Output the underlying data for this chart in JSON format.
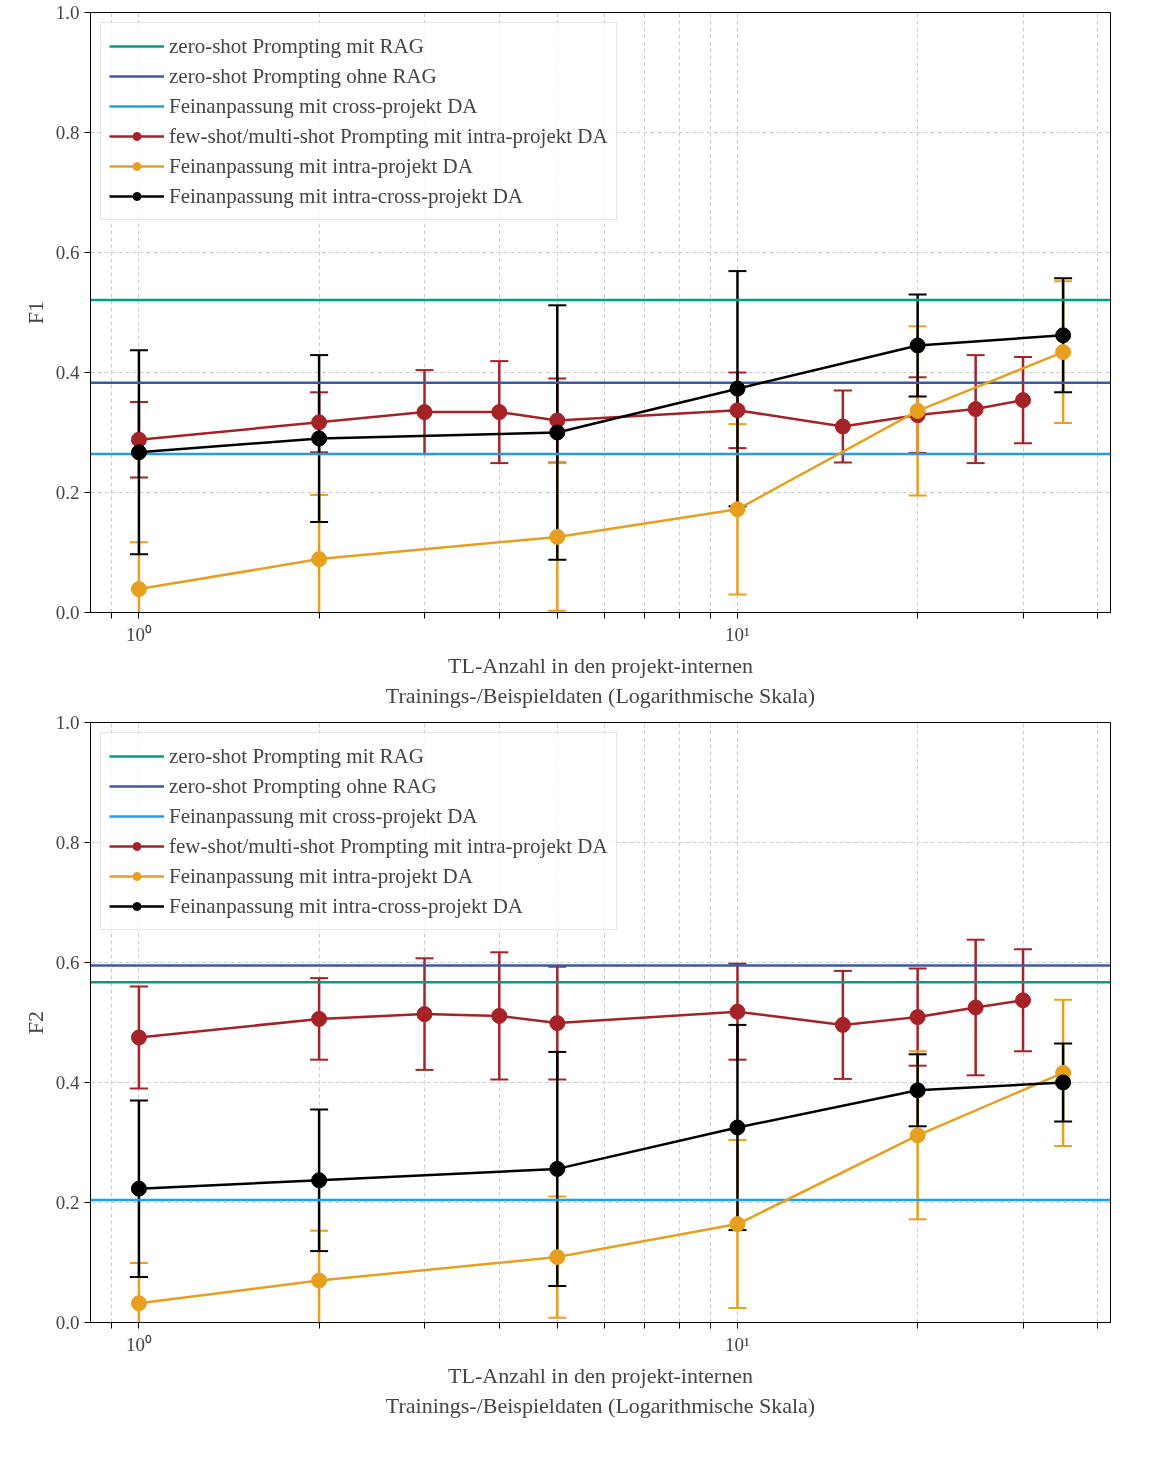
{
  "chart_data": [
    {
      "type": "line",
      "ylabel": "F1",
      "xlabel": "TL-Anzahl in den projekt-internen\nTrainings-/Beispieldaten (Logarithmische Skala)",
      "log": "x",
      "grid": true,
      "legend": "top left",
      "marker": "circle",
      "line_style": "solid",
      "xlim": [
        0.83,
        42
      ],
      "ylim": [
        0,
        1
      ],
      "xticks": [
        {
          "value": 0.9,
          "label": null
        },
        {
          "value": 1,
          "label": "10⁰"
        },
        {
          "value": 2,
          "label": null
        },
        {
          "value": 3,
          "label": null
        },
        {
          "value": 4,
          "label": null
        },
        {
          "value": 5,
          "label": null
        },
        {
          "value": 6,
          "label": null
        },
        {
          "value": 7,
          "label": null
        },
        {
          "value": 8,
          "label": null
        },
        {
          "value": 9,
          "label": null
        },
        {
          "value": 10,
          "label": "10¹"
        },
        {
          "value": 20,
          "label": null
        },
        {
          "value": 30,
          "label": null
        },
        {
          "value": 40,
          "label": null
        }
      ],
      "yticks": [
        {
          "value": 0,
          "label": "0.0"
        },
        {
          "value": 0.2,
          "label": "0.2"
        },
        {
          "value": 0.4,
          "label": "0.4"
        },
        {
          "value": 0.6,
          "label": "0.6"
        },
        {
          "value": 0.8,
          "label": "0.8"
        },
        {
          "value": 1,
          "label": "1.0"
        }
      ],
      "ref_lines": [
        {
          "axis": "y",
          "value": 0.521,
          "label": "zero-shot Prompting mit RAG",
          "color": "#009e86"
        },
        {
          "axis": "y",
          "value": 0.383,
          "label": "zero-shot Prompting ohne RAG",
          "color": "#3c5aa8"
        },
        {
          "axis": "y",
          "value": 0.264,
          "label": "Feinanpassung mit cross-projekt DA",
          "color": "#1fa0e6"
        }
      ],
      "series": [
        {
          "name": "few-shot/multi-shot Prompting mit intra-projekt DA",
          "color": "#a52226",
          "x": [
            1,
            2,
            3,
            4,
            5,
            10,
            15,
            20,
            25,
            30
          ],
          "values": [
            0.288,
            0.317,
            0.334,
            0.334,
            0.32,
            0.337,
            0.31,
            0.329,
            0.339,
            0.354
          ],
          "errors": [
            0.063,
            0.05,
            0.07,
            0.085,
            0.07,
            0.063,
            0.06,
            0.063,
            0.09,
            0.072
          ]
        },
        {
          "name": "Feinanpassung mit intra-projekt DA",
          "color": "#e69f1f",
          "x": [
            1,
            2,
            5,
            10,
            20,
            35
          ],
          "values": [
            0.039,
            0.089,
            0.126,
            0.172,
            0.336,
            0.434
          ],
          "errors": [
            0.078,
            0.107,
            0.123,
            0.142,
            0.141,
            0.118
          ]
        },
        {
          "name": "Feinanpassung mit intra-cross-projekt DA",
          "color": "#000000",
          "x": [
            1,
            2,
            5,
            10,
            20,
            35
          ],
          "values": [
            0.267,
            0.29,
            0.3,
            0.373,
            0.445,
            0.462
          ],
          "errors": [
            0.17,
            0.139,
            0.212,
            0.196,
            0.085,
            0.095
          ]
        }
      ]
    },
    {
      "type": "line",
      "ylabel": "F2",
      "xlabel": "TL-Anzahl in den projekt-internen\nTrainings-/Beispieldaten (Logarithmische Skala)",
      "log": "x",
      "grid": true,
      "legend": "top left",
      "marker": "circle",
      "line_style": "solid",
      "xlim": [
        0.83,
        42
      ],
      "ylim": [
        0,
        1
      ],
      "xticks": [
        {
          "value": 0.9,
          "label": null
        },
        {
          "value": 1,
          "label": "10⁰"
        },
        {
          "value": 2,
          "label": null
        },
        {
          "value": 3,
          "label": null
        },
        {
          "value": 4,
          "label": null
        },
        {
          "value": 5,
          "label": null
        },
        {
          "value": 6,
          "label": null
        },
        {
          "value": 7,
          "label": null
        },
        {
          "value": 8,
          "label": null
        },
        {
          "value": 9,
          "label": null
        },
        {
          "value": 10,
          "label": "10¹"
        },
        {
          "value": 20,
          "label": null
        },
        {
          "value": 30,
          "label": null
        },
        {
          "value": 40,
          "label": null
        }
      ],
      "yticks": [
        {
          "value": 0,
          "label": "0.0"
        },
        {
          "value": 0.2,
          "label": "0.2"
        },
        {
          "value": 0.4,
          "label": "0.4"
        },
        {
          "value": 0.6,
          "label": "0.6"
        },
        {
          "value": 0.8,
          "label": "0.8"
        },
        {
          "value": 1,
          "label": "1.0"
        }
      ],
      "ref_lines": [
        {
          "axis": "y",
          "value": 0.567,
          "label": "zero-shot Prompting mit RAG",
          "color": "#009e86"
        },
        {
          "axis": "y",
          "value": 0.595,
          "label": "zero-shot Prompting ohne RAG",
          "color": "#3c5aa8"
        },
        {
          "axis": "y",
          "value": 0.204,
          "label": "Feinanpassung mit cross-projekt DA",
          "color": "#1fa0e6"
        }
      ],
      "series": [
        {
          "name": "few-shot/multi-shot Prompting mit intra-projekt DA",
          "color": "#a52226",
          "x": [
            1,
            2,
            3,
            4,
            5,
            10,
            15,
            20,
            25,
            30
          ],
          "values": [
            0.475,
            0.506,
            0.514,
            0.511,
            0.499,
            0.518,
            0.496,
            0.509,
            0.525,
            0.537
          ],
          "errors": [
            0.085,
            0.068,
            0.093,
            0.106,
            0.094,
            0.08,
            0.09,
            0.081,
            0.113,
            0.085
          ]
        },
        {
          "name": "Feinanpassung mit intra-projekt DA",
          "color": "#e69f1f",
          "x": [
            1,
            2,
            5,
            10,
            20,
            35
          ],
          "values": [
            0.032,
            0.07,
            0.109,
            0.164,
            0.312,
            0.416
          ],
          "errors": [
            0.067,
            0.083,
            0.101,
            0.14,
            0.14,
            0.122
          ]
        },
        {
          "name": "Feinanpassung mit intra-cross-projekt DA",
          "color": "#000000",
          "x": [
            1,
            2,
            5,
            10,
            20,
            35
          ],
          "values": [
            0.223,
            0.237,
            0.256,
            0.325,
            0.387,
            0.4
          ],
          "errors": [
            0.147,
            0.118,
            0.195,
            0.171,
            0.06,
            0.065
          ]
        }
      ]
    }
  ]
}
